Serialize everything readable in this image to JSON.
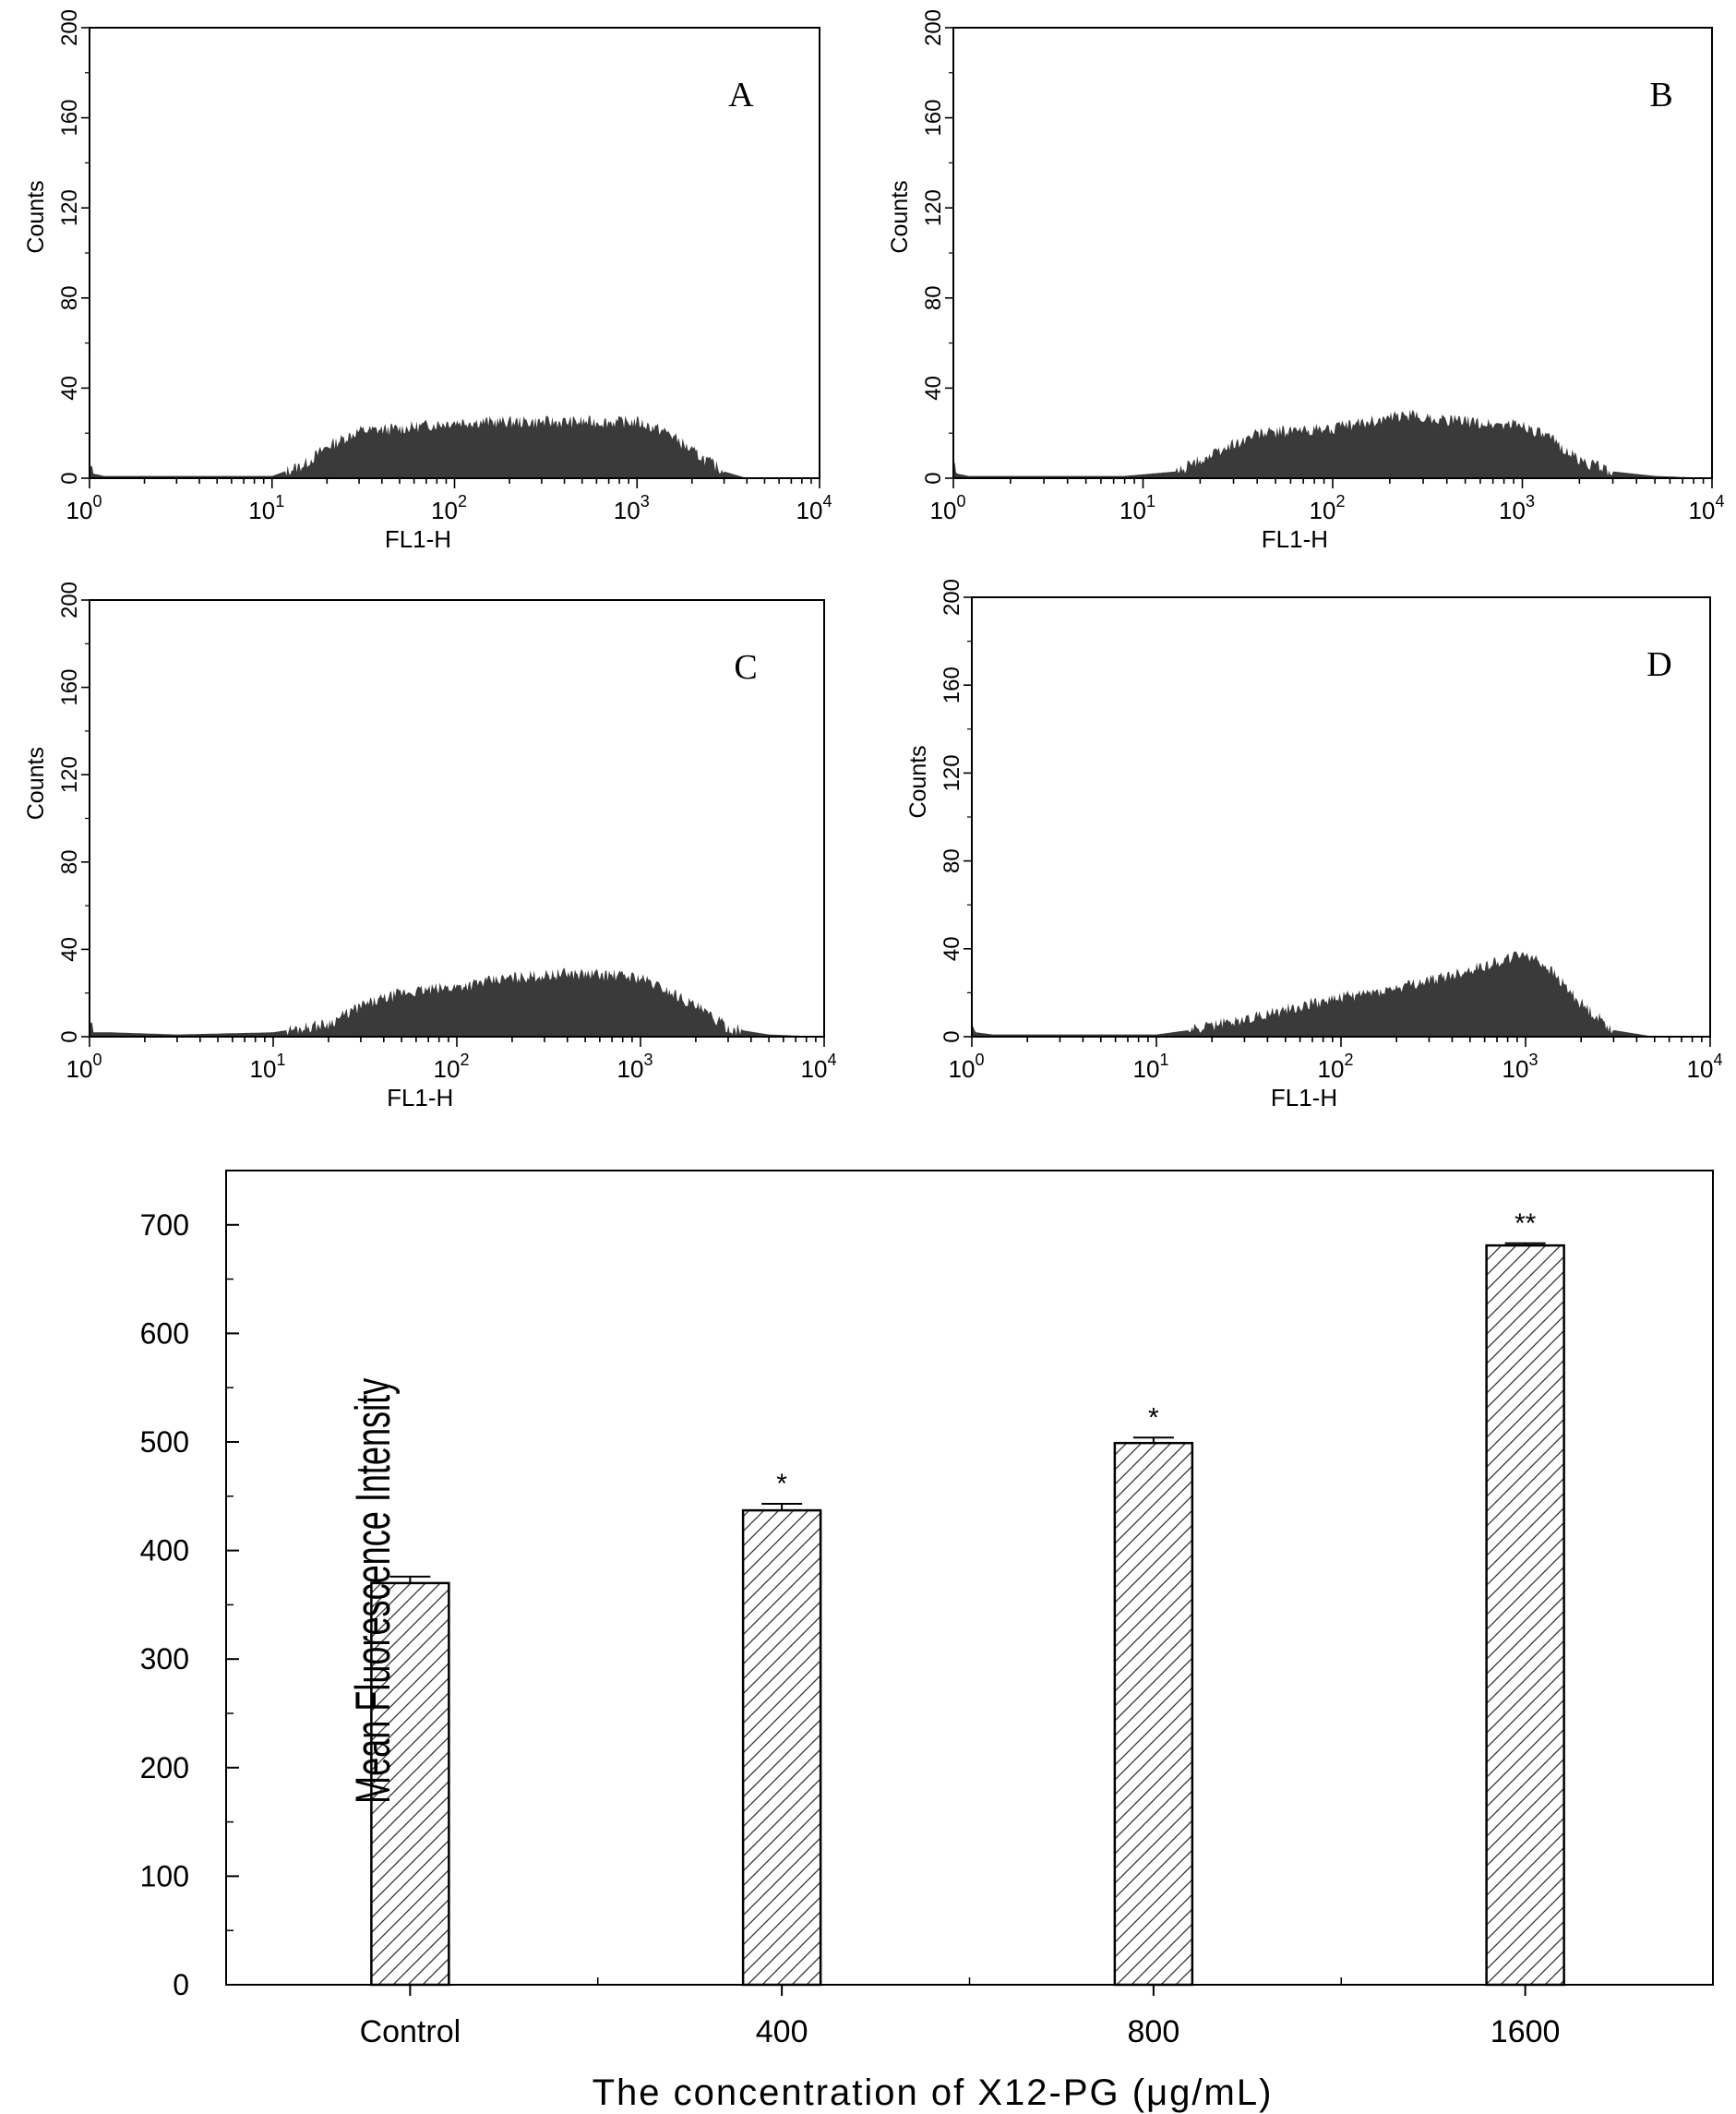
{
  "chart_data": [
    {
      "type": "histogram",
      "panel": "A",
      "xlabel": "FL1-H",
      "ylabel": "Counts",
      "xscale": "log",
      "xlim": [
        1,
        10000
      ],
      "ylim": [
        0,
        200
      ],
      "yticks": [
        "0",
        "40",
        "80",
        "120",
        "160",
        "200"
      ],
      "xticks": [
        {
          "base": "10",
          "exp": "0"
        },
        {
          "base": "10",
          "exp": "1"
        },
        {
          "base": "10",
          "exp": "2"
        },
        {
          "base": "10",
          "exp": "3"
        },
        {
          "base": "10",
          "exp": "4"
        }
      ],
      "profile": [
        [
          1.0,
          6
        ],
        [
          1.05,
          2
        ],
        [
          1.2,
          1
        ],
        [
          5,
          1
        ],
        [
          10,
          1
        ],
        [
          15,
          6
        ],
        [
          20,
          14
        ],
        [
          30,
          21
        ],
        [
          50,
          22
        ],
        [
          80,
          24
        ],
        [
          100,
          25
        ],
        [
          200,
          25
        ],
        [
          500,
          25
        ],
        [
          1000,
          25
        ],
        [
          1500,
          20
        ],
        [
          2000,
          12
        ],
        [
          3000,
          3
        ],
        [
          4000,
          0
        ],
        [
          10000,
          0
        ]
      ]
    },
    {
      "type": "histogram",
      "panel": "B",
      "xlabel": "FL1-H",
      "ylabel": "Counts",
      "xscale": "log",
      "xlim": [
        1,
        10000
      ],
      "ylim": [
        0,
        200
      ],
      "yticks": [
        "0",
        "40",
        "80",
        "120",
        "160",
        "200"
      ],
      "xticks": [
        {
          "base": "10",
          "exp": "0"
        },
        {
          "base": "10",
          "exp": "1"
        },
        {
          "base": "10",
          "exp": "2"
        },
        {
          "base": "10",
          "exp": "3"
        },
        {
          "base": "10",
          "exp": "4"
        }
      ],
      "profile": [
        [
          1.0,
          6
        ],
        [
          1.05,
          2
        ],
        [
          1.2,
          1
        ],
        [
          8,
          1
        ],
        [
          15,
          3
        ],
        [
          20,
          8
        ],
        [
          30,
          15
        ],
        [
          40,
          20
        ],
        [
          60,
          21
        ],
        [
          100,
          22
        ],
        [
          150,
          25
        ],
        [
          250,
          28
        ],
        [
          400,
          26
        ],
        [
          700,
          24
        ],
        [
          1000,
          24
        ],
        [
          1500,
          16
        ],
        [
          2000,
          8
        ],
        [
          3000,
          3
        ],
        [
          5000,
          1
        ],
        [
          10000,
          0
        ]
      ]
    },
    {
      "type": "histogram",
      "panel": "C",
      "xlabel": "FL1-H",
      "ylabel": "Counts",
      "xscale": "log",
      "xlim": [
        1,
        10000
      ],
      "ylim": [
        0,
        200
      ],
      "yticks": [
        "0",
        "40",
        "80",
        "120",
        "160",
        "200"
      ],
      "xticks": [
        {
          "base": "10",
          "exp": "0"
        },
        {
          "base": "10",
          "exp": "1"
        },
        {
          "base": "10",
          "exp": "2"
        },
        {
          "base": "10",
          "exp": "3"
        },
        {
          "base": "10",
          "exp": "4"
        }
      ],
      "profile": [
        [
          1.0,
          10
        ],
        [
          1.05,
          2
        ],
        [
          1.3,
          2
        ],
        [
          3,
          1
        ],
        [
          10,
          2
        ],
        [
          20,
          6
        ],
        [
          30,
          14
        ],
        [
          50,
          20
        ],
        [
          100,
          23
        ],
        [
          200,
          27
        ],
        [
          400,
          29
        ],
        [
          800,
          28
        ],
        [
          1000,
          27
        ],
        [
          1500,
          20
        ],
        [
          2000,
          14
        ],
        [
          3000,
          4
        ],
        [
          5000,
          1
        ],
        [
          10000,
          0
        ]
      ]
    },
    {
      "type": "histogram",
      "panel": "D",
      "xlabel": "FL1-H",
      "ylabel": "Counts",
      "xscale": "log",
      "xlim": [
        1,
        10000
      ],
      "ylim": [
        0,
        200
      ],
      "yticks": [
        "0",
        "40",
        "80",
        "120",
        "160",
        "200"
      ],
      "xticks": [
        {
          "base": "10",
          "exp": "0"
        },
        {
          "base": "10",
          "exp": "1"
        },
        {
          "base": "10",
          "exp": "2"
        },
        {
          "base": "10",
          "exp": "3"
        },
        {
          "base": "10",
          "exp": "4"
        }
      ],
      "profile": [
        [
          1.0,
          5
        ],
        [
          1.05,
          2
        ],
        [
          1.3,
          1
        ],
        [
          10,
          1
        ],
        [
          15,
          3
        ],
        [
          30,
          8
        ],
        [
          60,
          14
        ],
        [
          100,
          18
        ],
        [
          200,
          22
        ],
        [
          400,
          28
        ],
        [
          700,
          34
        ],
        [
          1000,
          38
        ],
        [
          1300,
          32
        ],
        [
          2000,
          15
        ],
        [
          3000,
          3
        ],
        [
          5000,
          0
        ],
        [
          10000,
          0
        ]
      ]
    },
    {
      "type": "bar",
      "categories": [
        "Control",
        "400",
        "800",
        "1600"
      ],
      "values": [
        370,
        437,
        499,
        681
      ],
      "errors": [
        6,
        6,
        5,
        2
      ],
      "significance": [
        "",
        "*",
        "*",
        "**"
      ],
      "xlabel": "The concentration of X12-PG (μg/mL)",
      "ylabel": "Mean Fluorescence Intensity",
      "ylim": [
        0,
        750
      ],
      "yticks": [
        0,
        100,
        200,
        300,
        400,
        500,
        600,
        700
      ]
    }
  ],
  "colors": {
    "hist_fill": "#3a3a3a",
    "axis": "#000000",
    "bar_fill": "#ffffff"
  }
}
